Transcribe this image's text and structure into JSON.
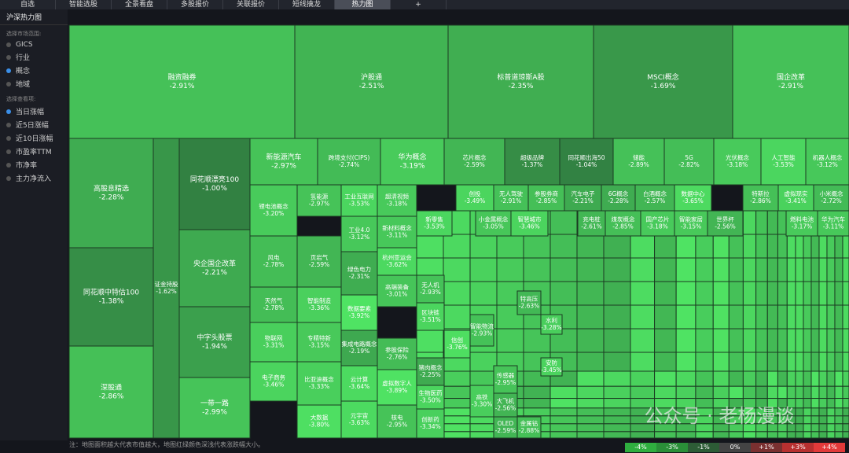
{
  "tabs": [
    "自选",
    "智能选股",
    "全景看盘",
    "多股报价",
    "关联报价",
    "短线擒龙",
    "热力图",
    "+"
  ],
  "active_tab": 6,
  "sidebar": {
    "title": "沪深热力图",
    "market_label": "选择市场范围:",
    "markets": [
      "GICS",
      "行业",
      "概念",
      "地域"
    ],
    "market_selected": 2,
    "view_label": "选择查看项:",
    "views": [
      "当日涨幅",
      "近5日涨幅",
      "近10日涨幅",
      "市盈率TTM",
      "市净率",
      "主力净流入"
    ],
    "view_selected": 0
  },
  "tiles": [
    {
      "name": "融资融券",
      "change": "-2.91%"
    },
    {
      "name": "沪股通",
      "change": "-2.51%"
    },
    {
      "name": "标普道琼斯A股",
      "change": "-2.35%"
    },
    {
      "name": "MSCI概念",
      "change": "-1.69%"
    },
    {
      "name": "国企改革",
      "change": "-2.91%"
    },
    {
      "name": "高股息精选",
      "change": "-2.28%"
    },
    {
      "name": "同花顺中特估100",
      "change": "-1.38%"
    },
    {
      "name": "深股通",
      "change": "-2.86%"
    },
    {
      "name": "证金持股",
      "change": "-1.62%"
    },
    {
      "name": "同花顺漂亮100",
      "change": "-1.00%"
    },
    {
      "name": "央企国企改革",
      "change": "-2.21%"
    },
    {
      "name": "中字头股票",
      "change": "-1.94%"
    },
    {
      "name": "一带一路",
      "change": "-2.99%"
    },
    {
      "name": "新能源汽车",
      "change": "-2.97%"
    },
    {
      "name": "跨境支付(CIPS)",
      "change": "-2.74%"
    },
    {
      "name": "华为概念",
      "change": "-3.19%"
    },
    {
      "name": "芯片概念",
      "change": "-2.59%"
    },
    {
      "name": "超级品牌",
      "change": "-1.37%"
    },
    {
      "name": "同花顺出海50",
      "change": "-1.04%"
    },
    {
      "name": "储能",
      "change": "-2.89%"
    },
    {
      "name": "5G",
      "change": "-2.82%"
    },
    {
      "name": "光伏概念",
      "change": "-3.18%"
    },
    {
      "name": "人工智能",
      "change": "-3.53%"
    },
    {
      "name": "机器人概念",
      "change": "-3.12%"
    },
    {
      "name": "锂电池概念",
      "change": "-3.20%"
    },
    {
      "name": "风电",
      "change": "-2.78%"
    },
    {
      "name": "天然气",
      "change": "-2.78%"
    },
    {
      "name": "物联网",
      "change": "-3.31%"
    },
    {
      "name": "电子商务",
      "change": "-3.46%"
    },
    {
      "name": "氢能源",
      "change": "-2.97%"
    },
    {
      "name": "页岩气",
      "change": "-2.59%"
    },
    {
      "name": "智能制造",
      "change": "-3.36%"
    },
    {
      "name": "专精特新",
      "change": "-3.15%"
    },
    {
      "name": "比亚迪概念",
      "change": "-3.33%"
    },
    {
      "name": "大数据",
      "change": "-3.80%"
    },
    {
      "name": "工业互联网",
      "change": "-3.53%"
    },
    {
      "name": "工业4.0",
      "change": "-3.12%"
    },
    {
      "name": "绿色电力",
      "change": "-2.31%"
    },
    {
      "name": "数据要素",
      "change": "-3.92%"
    },
    {
      "name": "集成电路概念",
      "change": "-2.19%"
    },
    {
      "name": "云计算",
      "change": "-3.64%"
    },
    {
      "name": "元宇宙",
      "change": "-3.63%"
    },
    {
      "name": "超清视频",
      "change": "-3.18%"
    },
    {
      "name": "新材料概念",
      "change": "-3.11%"
    },
    {
      "name": "杭州亚运会",
      "change": "-3.62%"
    },
    {
      "name": "高端装备",
      "change": "-3.01%"
    },
    {
      "name": "参股保险",
      "change": "-2.76%"
    },
    {
      "name": "虚拟数字人",
      "change": "-3.89%"
    },
    {
      "name": "核电",
      "change": "-2.95%"
    },
    {
      "name": "创投",
      "change": "-3.49%"
    },
    {
      "name": "无人驾驶",
      "change": "-2.91%"
    },
    {
      "name": "参股券商",
      "change": "-2.85%"
    },
    {
      "name": "汽车电子",
      "change": "-2.21%"
    },
    {
      "name": "6G概念",
      "change": "-2.28%"
    },
    {
      "name": "白酒概念",
      "change": "-2.57%"
    },
    {
      "name": "数据中心",
      "change": "-3.65%"
    },
    {
      "name": "特斯拉",
      "change": "-2.86%"
    },
    {
      "name": "虚拟现实",
      "change": "-3.41%"
    },
    {
      "name": "小米概念",
      "change": "-2.72%"
    },
    {
      "name": "新零售",
      "change": "-3.53%"
    },
    {
      "name": "小金属概念",
      "change": "-3.05%"
    },
    {
      "name": "智慧城市",
      "change": "-3.46%"
    },
    {
      "name": "充电桩",
      "change": "-2.61%"
    },
    {
      "name": "煤炭概念",
      "change": "-2.85%"
    },
    {
      "name": "国产芯片",
      "change": "-3.18%"
    },
    {
      "name": "智能家居",
      "change": "-3.15%"
    },
    {
      "name": "世界杯",
      "change": "-2.56%"
    },
    {
      "name": "燃料电池",
      "change": "-3.17%"
    },
    {
      "name": "华为汽车",
      "change": "-3.11%"
    },
    {
      "name": "无人机",
      "change": "-2.93%"
    },
    {
      "name": "区块链",
      "change": "-3.51%"
    },
    {
      "name": "猪肉概念",
      "change": "-2.25%"
    },
    {
      "name": "生物医药",
      "change": "-3.50%"
    },
    {
      "name": "创新药",
      "change": "-3.34%"
    },
    {
      "name": "信创",
      "change": "-3.76%"
    },
    {
      "name": "智能物流",
      "change": "-2.93%"
    },
    {
      "name": "高铁",
      "change": "-3.30%"
    },
    {
      "name": "传感器",
      "change": "-2.95%"
    },
    {
      "name": "大飞机",
      "change": "-2.56%"
    },
    {
      "name": "OLED",
      "change": "-2.59%"
    },
    {
      "name": "特高压",
      "change": "-2.63%"
    },
    {
      "name": "金属钴",
      "change": "-2.88%"
    },
    {
      "name": "水利",
      "change": "-3.28%"
    },
    {
      "name": "安防",
      "change": "-3.45%"
    }
  ],
  "watermark": "公众号 · 老杨漫谈",
  "footer_note": "注：地图面积越大代表市值越大，地图红绿颜色深浅代表涨跌幅大小。",
  "legend": [
    "-4%",
    "-3%",
    "-1%",
    "0%",
    "+1%",
    "+3%",
    "+4%"
  ]
}
